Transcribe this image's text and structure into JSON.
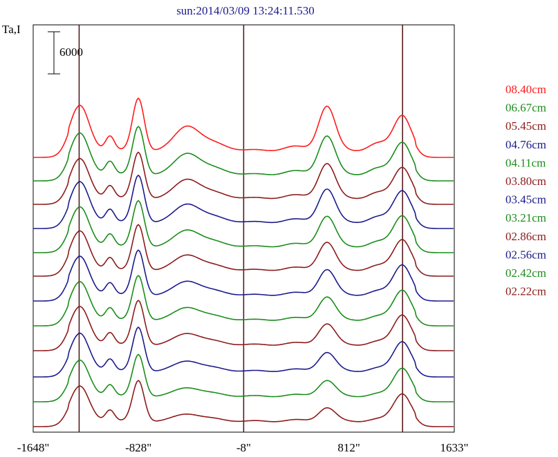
{
  "chart_data": {
    "type": "line",
    "title": "sun:2014/03/09 13:24:11.530",
    "ylabel": "Ta,I",
    "scale_bar_label": "6000",
    "x_ticks": [
      {
        "value": -1648,
        "label": "-1648\""
      },
      {
        "value": -828,
        "label": "-828\""
      },
      {
        "value": -8,
        "label": "-8\""
      },
      {
        "value": 812,
        "label": "812\""
      },
      {
        "value": 1633,
        "label": "1633\""
      }
    ],
    "xlim": [
      -1648,
      1633
    ],
    "vertical_lines": [
      -1290,
      -8,
      1230
    ],
    "series": [
      {
        "name": "08.40cm",
        "color": "#ff1a1a",
        "base": 228,
        "amp": 1.0
      },
      {
        "name": "06.67cm",
        "color": "#1a8c1a",
        "base": 262,
        "amp": 0.92
      },
      {
        "name": "05.45cm",
        "color": "#8c1a1a",
        "base": 296,
        "amp": 0.88
      },
      {
        "name": "04.76cm",
        "color": "#1a1a8c",
        "base": 331,
        "amp": 0.9
      },
      {
        "name": "04.11cm",
        "color": "#1a8c1a",
        "base": 366,
        "amp": 0.88
      },
      {
        "name": "03.80cm",
        "color": "#8c1a1a",
        "base": 400,
        "amp": 0.87
      },
      {
        "name": "03.45cm",
        "color": "#1a1a8c",
        "base": 436,
        "amp": 0.86
      },
      {
        "name": "03.21cm",
        "color": "#1a8c1a",
        "base": 472,
        "amp": 0.85
      },
      {
        "name": "02.86cm",
        "color": "#8c1a1a",
        "base": 508,
        "amp": 0.85
      },
      {
        "name": "02.56cm",
        "color": "#1a1a8c",
        "base": 546,
        "amp": 0.84
      },
      {
        "name": "02.42cm",
        "color": "#1a8c1a",
        "base": 582,
        "amp": 0.8
      },
      {
        "name": "02.22cm",
        "color": "#8c1a1a",
        "base": 618,
        "amp": 0.78
      }
    ]
  }
}
